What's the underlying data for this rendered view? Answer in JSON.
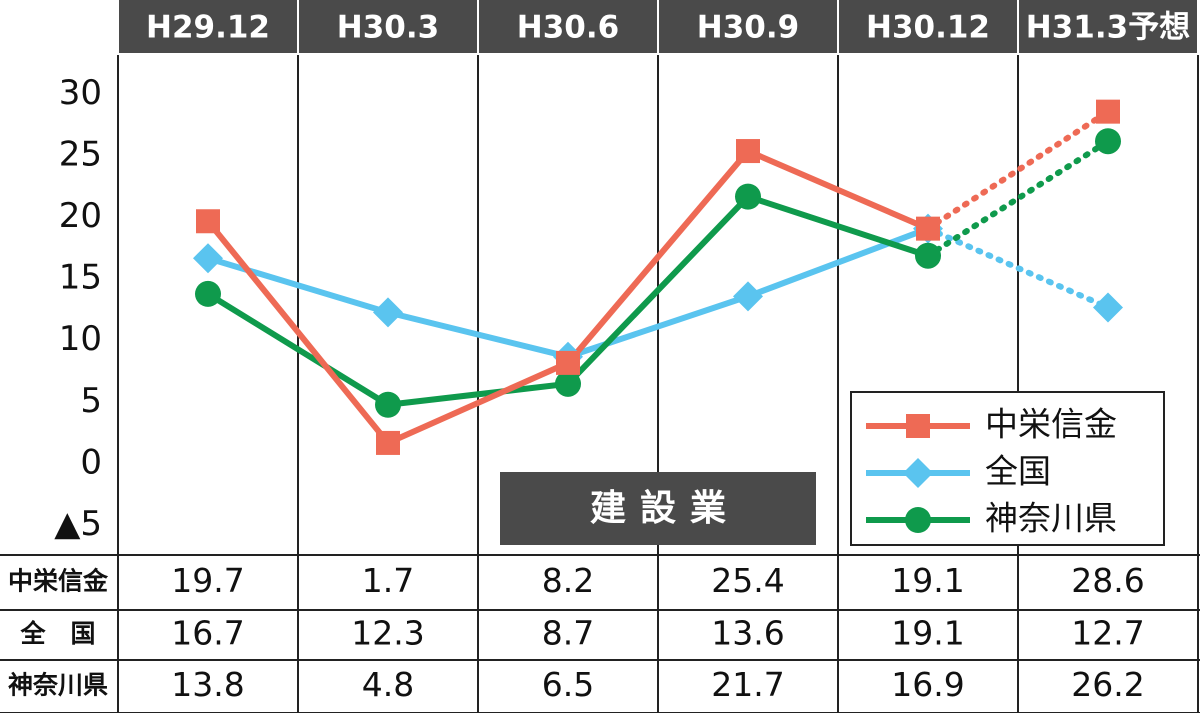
{
  "chart_data": {
    "type": "line",
    "categories": [
      "H29.12",
      "H30.3",
      "H30.6",
      "H30.9",
      "H30.12",
      "H31.3予想"
    ],
    "series": [
      {
        "name": "中栄信金",
        "color": "#ee6a55",
        "marker": "square",
        "values": [
          19.7,
          1.7,
          8.2,
          25.4,
          19.1,
          28.6
        ]
      },
      {
        "name": "全国",
        "color": "#5ac4ef",
        "marker": "diamond",
        "values": [
          16.7,
          12.3,
          8.7,
          13.6,
          19.1,
          12.7
        ]
      },
      {
        "name": "神奈川県",
        "color": "#0f9a4c",
        "marker": "circle",
        "values": [
          13.8,
          4.8,
          6.5,
          21.7,
          16.9,
          26.2
        ]
      }
    ],
    "ylim": [
      -7.4,
      33.2
    ],
    "yticks": [
      {
        "value": -5,
        "label": "▲5"
      },
      0,
      5,
      10,
      15,
      20,
      25,
      30
    ],
    "dotted_last_segment": true,
    "annotation": "建設業",
    "table_row_labels": [
      "中栄信金",
      "全　国",
      "神奈川県"
    ],
    "legend": "lower right"
  }
}
